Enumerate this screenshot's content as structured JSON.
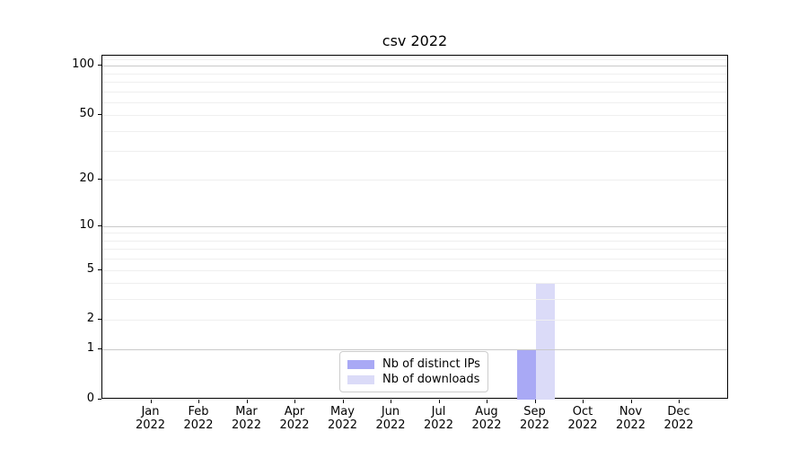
{
  "title": "csv 2022",
  "chart_data": {
    "type": "bar",
    "title": "csv 2022",
    "categories": [
      {
        "month": "Jan",
        "year": "2022"
      },
      {
        "month": "Feb",
        "year": "2022"
      },
      {
        "month": "Mar",
        "year": "2022"
      },
      {
        "month": "Apr",
        "year": "2022"
      },
      {
        "month": "May",
        "year": "2022"
      },
      {
        "month": "Jun",
        "year": "2022"
      },
      {
        "month": "Jul",
        "year": "2022"
      },
      {
        "month": "Aug",
        "year": "2022"
      },
      {
        "month": "Sep",
        "year": "2022"
      },
      {
        "month": "Oct",
        "year": "2022"
      },
      {
        "month": "Nov",
        "year": "2022"
      },
      {
        "month": "Dec",
        "year": "2022"
      }
    ],
    "series": [
      {
        "name": "Nb of distinct IPs",
        "color": "#a9a9f5",
        "values": [
          0,
          0,
          0,
          0,
          0,
          0,
          0,
          0,
          1,
          0,
          0,
          0
        ]
      },
      {
        "name": "Nb of downloads",
        "color": "#dbdbf8",
        "values": [
          0,
          0,
          0,
          0,
          0,
          0,
          0,
          0,
          4,
          0,
          0,
          0
        ]
      }
    ],
    "xlabel": "",
    "ylabel": "",
    "yscale": "log1p",
    "ylim": [
      0,
      115
    ],
    "yticks": [
      0,
      1,
      2,
      5,
      10,
      20,
      50,
      100
    ],
    "major_gridlines": [
      1,
      10,
      100
    ],
    "minor_gridlines": [
      2,
      3,
      4,
      5,
      6,
      7,
      8,
      9,
      20,
      30,
      40,
      50,
      60,
      70,
      80,
      90,
      110
    ],
    "grid": true,
    "legend_position": "lower center"
  },
  "colors": {
    "background": "#ffffff",
    "axis": "#000000",
    "major_grid": "#c9c9c9",
    "minor_grid": "#efefef",
    "legend_border": "#cccccc",
    "bar_distinct_ips": "#a9a9f5",
    "bar_downloads": "#dbdbf8"
  }
}
